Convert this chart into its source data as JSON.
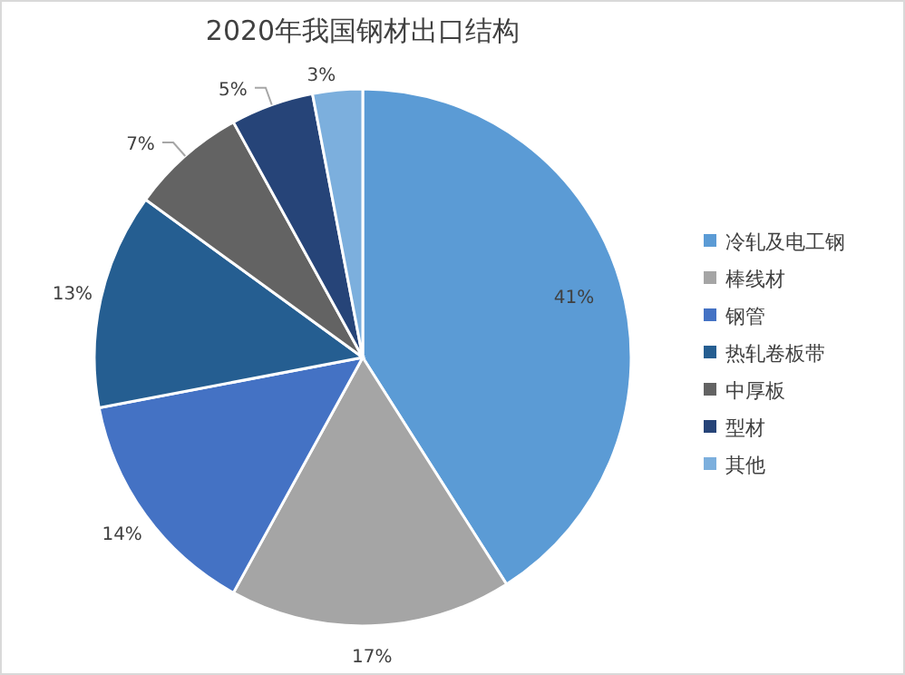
{
  "chart_data": {
    "type": "pie",
    "title": "2020年我国钢材出口结构",
    "categories": [
      "冷轧及电工钢",
      "棒线材",
      "钢管",
      "热轧卷板带",
      "中厚板",
      "型材",
      "其他"
    ],
    "values": [
      41,
      17,
      14,
      13,
      7,
      5,
      3
    ],
    "value_labels": [
      "41%",
      "17%",
      "14%",
      "13%",
      "7%",
      "5%",
      "3%"
    ],
    "colors": [
      "#5b9bd5",
      "#a5a5a5",
      "#4472c4",
      "#255e91",
      "#636363",
      "#264478",
      "#7cafdd"
    ],
    "legend": "right"
  }
}
